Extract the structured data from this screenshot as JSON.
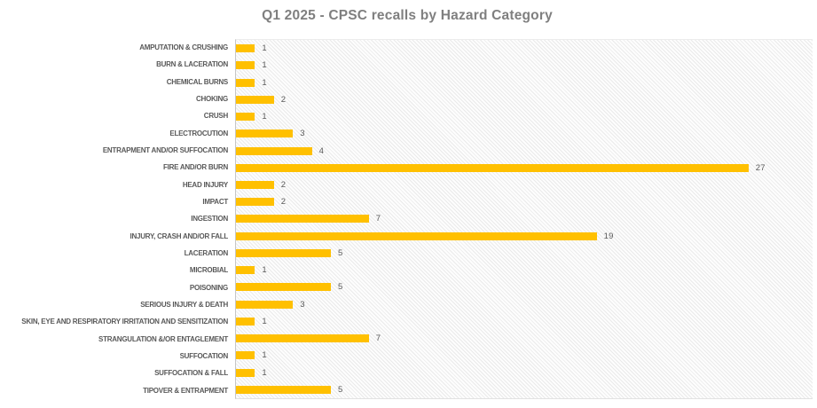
{
  "chart_data": {
    "type": "bar",
    "orientation": "horizontal",
    "title": "Q1 2025 - CPSC recalls by Hazard Category",
    "categories": [
      "AMPUTATION & CRUSHING",
      "BURN & LACERATION",
      "CHEMICAL BURNS",
      "CHOKING",
      "CRUSH",
      "ELECTROCUTION",
      "ENTRAPMENT AND/OR SUFFOCATION",
      "FIRE AND/OR BURN",
      "HEAD INJURY",
      "IMPACT",
      "INGESTION",
      "INJURY, CRASH AND/OR FALL",
      "LACERATION",
      "MICROBIAL",
      "POISONING",
      "SERIOUS INJURY & DEATH",
      "SKIN, EYE AND RESPIRATORY IRRITATION AND SENSITIZATION",
      "STRANGULATION &/OR ENTAGLEMENT",
      "SUFFOCATION",
      "SUFFOCATION & FALL",
      "TIPOVER & ENTRAPMENT"
    ],
    "values": [
      1,
      1,
      1,
      2,
      1,
      3,
      4,
      27,
      2,
      2,
      7,
      19,
      5,
      1,
      5,
      3,
      1,
      7,
      1,
      1,
      5
    ],
    "xlabel": "",
    "ylabel": "",
    "xlim": [
      0,
      30
    ],
    "grid": false,
    "legend_position": "none",
    "data_labels": true,
    "plot_background": "diagonal-hatch",
    "colors": {
      "bar": "#FFC000",
      "category_label": "#595959",
      "value_label": "#595959",
      "title": "#7F7F7F",
      "axis_line": "#C6C6C6",
      "hatch_line": "#E9E9E9"
    }
  }
}
